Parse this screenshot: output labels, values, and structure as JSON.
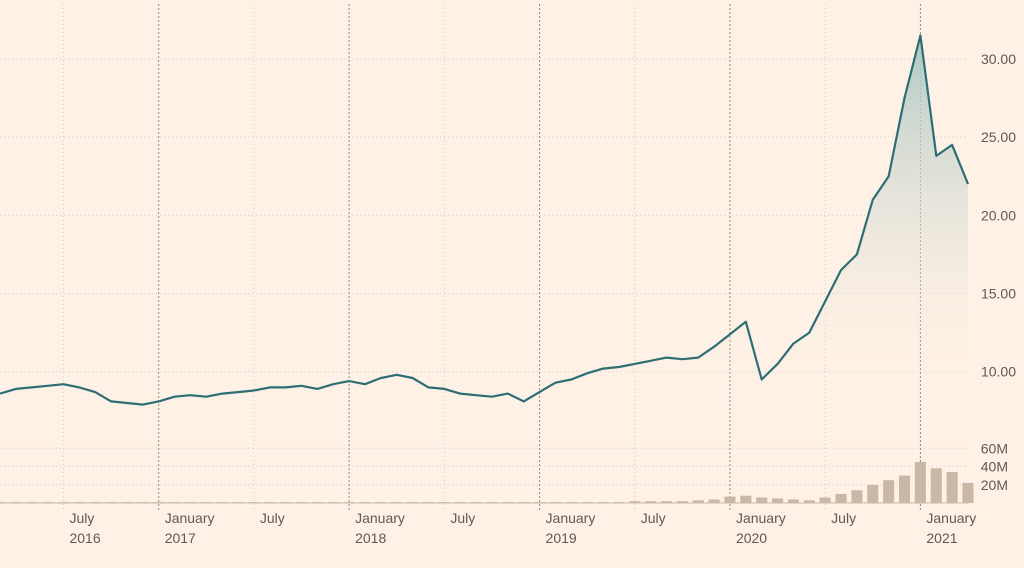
{
  "chart_data": {
    "type": "area",
    "title": "",
    "colors": {
      "background": "#FFF1E5",
      "line": "#2E6D73",
      "area_top": "#A9C6C2",
      "volume": "#CBB7A6",
      "grid": "#D9CDC1",
      "text": "#5f5a55"
    },
    "price_axis": {
      "side": "right",
      "ticks": [
        "10.00",
        "15.00",
        "20.00",
        "25.00",
        "30.00"
      ],
      "tick_values": [
        10,
        15,
        20,
        25,
        30
      ],
      "ylim": [
        8,
        33
      ]
    },
    "volume_axis": {
      "side": "right",
      "ticks": [
        "20M",
        "40M",
        "60M"
      ],
      "tick_values": [
        20,
        40,
        60
      ],
      "ylim": [
        0,
        80
      ]
    },
    "x_axis": {
      "range": [
        "2016-03",
        "2021-04"
      ],
      "ticks": [
        {
          "date": "2016-07",
          "label": "July",
          "year": "2016"
        },
        {
          "date": "2017-01",
          "label": "January",
          "year": "2017"
        },
        {
          "date": "2017-07",
          "label": "July",
          "year": ""
        },
        {
          "date": "2018-01",
          "label": "January",
          "year": "2018"
        },
        {
          "date": "2018-07",
          "label": "July",
          "year": ""
        },
        {
          "date": "2019-01",
          "label": "January",
          "year": "2019"
        },
        {
          "date": "2019-07",
          "label": "July",
          "year": ""
        },
        {
          "date": "2020-01",
          "label": "January",
          "year": "2020"
        },
        {
          "date": "2020-07",
          "label": "July",
          "year": ""
        },
        {
          "date": "2021-01",
          "label": "January",
          "year": "2021"
        }
      ]
    },
    "series": [
      {
        "kind": "price",
        "x": [
          "2016-03",
          "2016-04",
          "2016-05",
          "2016-06",
          "2016-07",
          "2016-08",
          "2016-09",
          "2016-10",
          "2016-11",
          "2016-12",
          "2017-01",
          "2017-02",
          "2017-03",
          "2017-04",
          "2017-05",
          "2017-06",
          "2017-07",
          "2017-08",
          "2017-09",
          "2017-10",
          "2017-11",
          "2017-12",
          "2018-01",
          "2018-02",
          "2018-03",
          "2018-04",
          "2018-05",
          "2018-06",
          "2018-07",
          "2018-08",
          "2018-09",
          "2018-10",
          "2018-11",
          "2018-12",
          "2019-01",
          "2019-02",
          "2019-03",
          "2019-04",
          "2019-05",
          "2019-06",
          "2019-07",
          "2019-08",
          "2019-09",
          "2019-10",
          "2019-11",
          "2019-12",
          "2020-01",
          "2020-02",
          "2020-03",
          "2020-04",
          "2020-05",
          "2020-06",
          "2020-07",
          "2020-08",
          "2020-09",
          "2020-10",
          "2020-11",
          "2020-12",
          "2021-01",
          "2021-02",
          "2021-03",
          "2021-04"
        ],
        "values": [
          8.6,
          8.9,
          9.0,
          9.1,
          9.2,
          9.0,
          8.7,
          8.1,
          8.0,
          7.9,
          8.1,
          8.4,
          8.5,
          8.4,
          8.6,
          8.7,
          8.8,
          9.0,
          9.0,
          9.1,
          8.9,
          9.2,
          9.4,
          9.2,
          9.6,
          9.8,
          9.6,
          9.0,
          8.9,
          8.6,
          8.5,
          8.4,
          8.6,
          8.1,
          8.7,
          9.3,
          9.5,
          9.9,
          10.2,
          10.3,
          10.5,
          10.7,
          10.9,
          10.8,
          10.9,
          11.6,
          12.4,
          13.2,
          9.5,
          10.5,
          11.8,
          12.5,
          14.5,
          16.5,
          17.5,
          21.0,
          22.5,
          27.5,
          31.5,
          23.8,
          24.5,
          22.0
        ]
      },
      {
        "kind": "volume",
        "x": [
          "2016-03",
          "2016-04",
          "2016-05",
          "2016-06",
          "2016-07",
          "2016-08",
          "2016-09",
          "2016-10",
          "2016-11",
          "2016-12",
          "2017-01",
          "2017-02",
          "2017-03",
          "2017-04",
          "2017-05",
          "2017-06",
          "2017-07",
          "2017-08",
          "2017-09",
          "2017-10",
          "2017-11",
          "2017-12",
          "2018-01",
          "2018-02",
          "2018-03",
          "2018-04",
          "2018-05",
          "2018-06",
          "2018-07",
          "2018-08",
          "2018-09",
          "2018-10",
          "2018-11",
          "2018-12",
          "2019-01",
          "2019-02",
          "2019-03",
          "2019-04",
          "2019-05",
          "2019-06",
          "2019-07",
          "2019-08",
          "2019-09",
          "2019-10",
          "2019-11",
          "2019-12",
          "2020-01",
          "2020-02",
          "2020-03",
          "2020-04",
          "2020-05",
          "2020-06",
          "2020-07",
          "2020-08",
          "2020-09",
          "2020-10",
          "2020-11",
          "2020-12",
          "2021-01",
          "2021-02",
          "2021-03",
          "2021-04"
        ],
        "values": [
          1,
          1,
          1,
          1,
          1,
          1,
          1,
          1,
          1,
          1,
          1,
          1,
          1,
          1,
          1,
          1,
          1,
          1,
          1,
          1,
          1,
          1,
          1,
          1,
          1,
          1,
          1,
          1,
          1,
          1,
          1,
          1,
          1,
          1,
          1,
          1,
          1,
          1,
          1,
          1,
          2,
          2,
          2,
          2,
          3,
          4,
          7,
          8,
          6,
          5,
          4,
          3,
          6,
          10,
          14,
          20,
          25,
          30,
          45,
          38,
          34,
          22
        ]
      }
    ]
  }
}
